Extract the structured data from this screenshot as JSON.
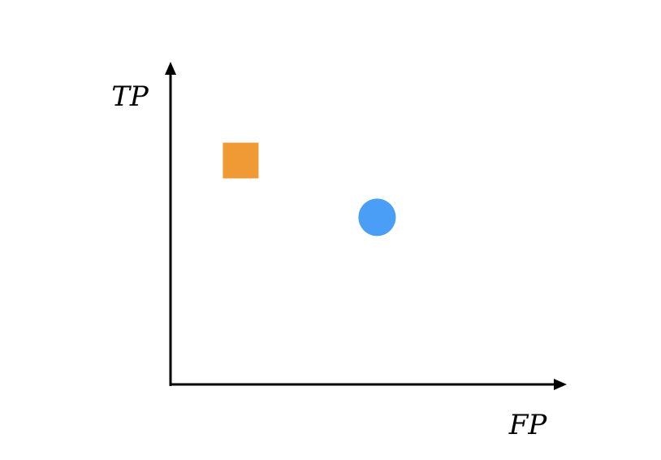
{
  "chart_data": {
    "type": "scatter",
    "title": "",
    "xlabel": "FP",
    "ylabel": "TP",
    "xlim": [
      0,
      10
    ],
    "ylim": [
      0,
      10
    ],
    "grid": false,
    "axis_ticks": false,
    "axis_color": "#000000",
    "series": [
      {
        "marker": "square",
        "color": "#F09A36",
        "points": [
          {
            "x": 1.8,
            "y": 7.1
          }
        ]
      },
      {
        "marker": "circle",
        "color": "#4A9EF5",
        "points": [
          {
            "x": 5.3,
            "y": 5.3
          }
        ]
      }
    ]
  }
}
